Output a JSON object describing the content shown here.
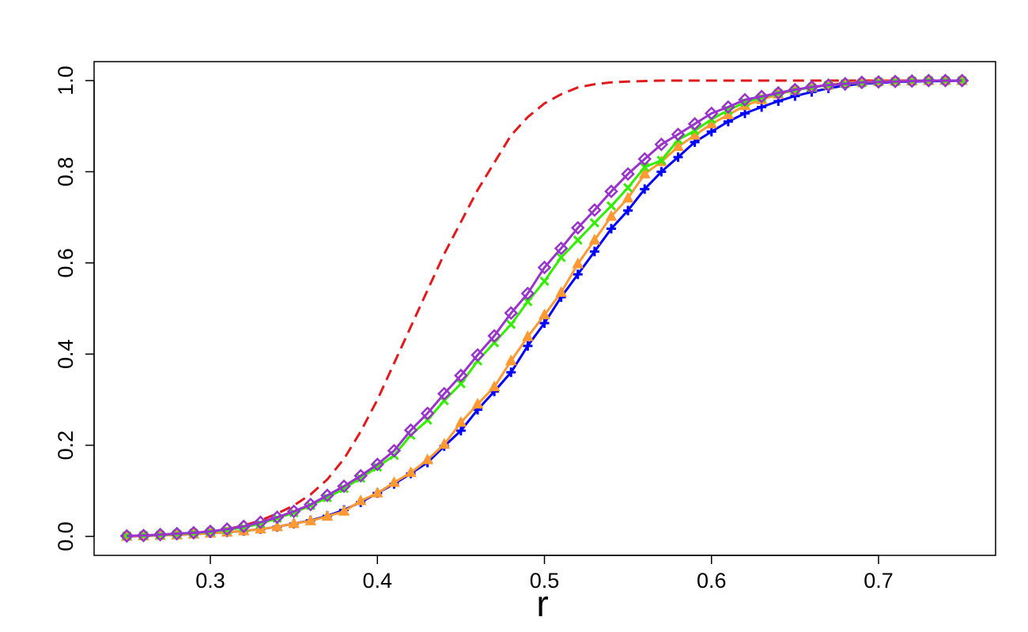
{
  "chart_data": {
    "type": "line",
    "title": "",
    "xlabel": "r",
    "ylabel": "",
    "xlim": [
      0.25,
      0.75
    ],
    "ylim": [
      0.0,
      1.0
    ],
    "xticks": [
      "0.3",
      "0.4",
      "0.5",
      "0.6",
      "0.7"
    ],
    "yticks": [
      "0.0",
      "0.2",
      "0.4",
      "0.6",
      "0.8",
      "1.0"
    ],
    "grid": false,
    "legend": "none",
    "x": [
      0.25,
      0.26,
      0.27,
      0.28,
      0.29,
      0.3,
      0.31,
      0.32,
      0.33,
      0.34,
      0.35,
      0.36,
      0.37,
      0.38,
      0.39,
      0.4,
      0.41,
      0.42,
      0.43,
      0.44,
      0.45,
      0.46,
      0.47,
      0.48,
      0.49,
      0.5,
      0.51,
      0.52,
      0.53,
      0.54,
      0.55,
      0.56,
      0.57,
      0.58,
      0.59,
      0.6,
      0.61,
      0.62,
      0.63,
      0.64,
      0.65,
      0.66,
      0.67,
      0.68,
      0.69,
      0.7,
      0.71,
      0.72,
      0.73,
      0.74,
      0.75
    ],
    "series": [
      {
        "color": "#e31a1c",
        "style": "dashed",
        "marker": "none",
        "values": [
          0.0,
          0.001,
          0.002,
          0.004,
          0.006,
          0.01,
          0.016,
          0.024,
          0.035,
          0.05,
          0.068,
          0.092,
          0.125,
          0.17,
          0.23,
          0.3,
          0.38,
          0.46,
          0.54,
          0.62,
          0.69,
          0.76,
          0.82,
          0.88,
          0.92,
          0.95,
          0.97,
          0.985,
          0.992,
          0.996,
          0.998,
          0.999,
          1.0,
          1.0,
          1.0,
          1.0,
          1.0,
          1.0,
          1.0,
          1.0,
          1.0,
          1.0,
          1.0,
          1.0,
          1.0,
          1.0,
          1.0,
          1.0,
          1.0,
          1.0,
          1.0
        ]
      },
      {
        "color": "#0000ff",
        "style": "solid",
        "marker": "plus",
        "values": [
          0.0,
          0.001,
          0.002,
          0.003,
          0.005,
          0.007,
          0.009,
          0.012,
          0.016,
          0.021,
          0.028,
          0.035,
          0.045,
          0.058,
          0.075,
          0.095,
          0.115,
          0.138,
          0.162,
          0.198,
          0.232,
          0.278,
          0.318,
          0.36,
          0.418,
          0.468,
          0.525,
          0.575,
          0.625,
          0.675,
          0.715,
          0.762,
          0.8,
          0.832,
          0.865,
          0.888,
          0.91,
          0.928,
          0.942,
          0.955,
          0.966,
          0.975,
          0.983,
          0.989,
          0.993,
          0.995,
          0.997,
          0.998,
          0.999,
          0.999,
          1.0
        ]
      },
      {
        "color": "#ff9933",
        "style": "solid",
        "marker": "triangle",
        "values": [
          0.0,
          0.001,
          0.002,
          0.003,
          0.005,
          0.007,
          0.009,
          0.012,
          0.016,
          0.021,
          0.028,
          0.034,
          0.044,
          0.055,
          0.078,
          0.095,
          0.118,
          0.14,
          0.168,
          0.202,
          0.25,
          0.29,
          0.328,
          0.385,
          0.438,
          0.486,
          0.535,
          0.598,
          0.65,
          0.702,
          0.742,
          0.795,
          0.822,
          0.855,
          0.88,
          0.905,
          0.925,
          0.945,
          0.958,
          0.97,
          0.979,
          0.986,
          0.991,
          0.995,
          0.997,
          0.998,
          0.999,
          0.999,
          1.0,
          1.0,
          1.0
        ]
      },
      {
        "color": "#33ee00",
        "style": "solid",
        "marker": "x",
        "values": [
          0.001,
          0.002,
          0.003,
          0.005,
          0.007,
          0.01,
          0.014,
          0.02,
          0.028,
          0.04,
          0.052,
          0.068,
          0.085,
          0.105,
          0.128,
          0.152,
          0.178,
          0.222,
          0.255,
          0.298,
          0.335,
          0.385,
          0.425,
          0.465,
          0.515,
          0.56,
          0.612,
          0.65,
          0.688,
          0.725,
          0.765,
          0.81,
          0.825,
          0.87,
          0.89,
          0.915,
          0.935,
          0.952,
          0.963,
          0.972,
          0.979,
          0.985,
          0.99,
          0.993,
          0.995,
          0.997,
          0.998,
          0.999,
          1.0,
          1.0,
          1.0
        ]
      },
      {
        "color": "#9933cc",
        "style": "solid",
        "marker": "diamond",
        "values": [
          0.001,
          0.002,
          0.004,
          0.006,
          0.008,
          0.011,
          0.016,
          0.022,
          0.031,
          0.042,
          0.055,
          0.07,
          0.09,
          0.11,
          0.133,
          0.158,
          0.188,
          0.233,
          0.27,
          0.313,
          0.353,
          0.398,
          0.44,
          0.49,
          0.533,
          0.59,
          0.632,
          0.677,
          0.716,
          0.757,
          0.795,
          0.828,
          0.86,
          0.882,
          0.905,
          0.928,
          0.942,
          0.958,
          0.965,
          0.973,
          0.98,
          0.986,
          0.99,
          0.993,
          0.996,
          0.997,
          0.998,
          0.999,
          1.0,
          1.0,
          1.0
        ]
      }
    ]
  }
}
